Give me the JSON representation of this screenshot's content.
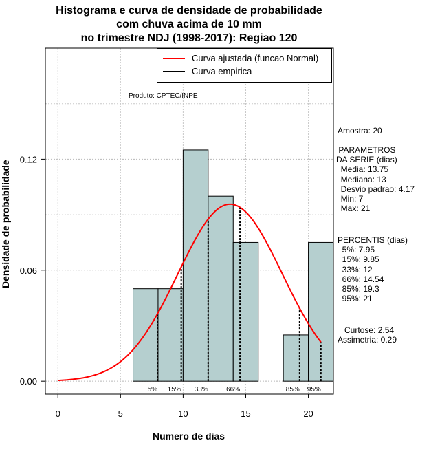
{
  "title_lines": [
    "Histograma e curva de densidade de probabilidade",
    "com chuva acima de 10 mm",
    "no trimestre NDJ (1998-2017): Regiao 120"
  ],
  "produto": "Produto: CPTEC/INPE",
  "sidebar": {
    "amostra": "Amostra: 20",
    "parametros": [
      " PARAMETROS",
      "DA SERIE (dias)",
      "  Media: 13.75",
      "  Mediana: 13",
      "  Desvio padrao: 4.17",
      "  Min: 7",
      "  Max: 21"
    ],
    "percentis": [
      "PERCENTIS (dias)",
      "  5%: 7.95",
      "  15%: 9.85",
      "  33%: 12",
      "  66%: 14.54",
      "  85%: 19.3",
      "  95%: 21"
    ],
    "shape": [
      "   Curtose: 2.54",
      "Assimetria: 0.29"
    ]
  },
  "chart_data": {
    "type": "bar",
    "title": "Histograma e curva de densidade de probabilidade com chuva acima de 10 mm no trimestre NDJ (1998-2017): Regiao 120",
    "xlabel": "Numero de dias",
    "ylabel": "Densidade de probabilidade",
    "xlim": [
      -1,
      22
    ],
    "ylim": [
      -0.007,
      0.18
    ],
    "xticks": [
      0,
      5,
      10,
      15,
      20
    ],
    "yticks": [
      0.0,
      0.06,
      0.12
    ],
    "ytick_labels": [
      "0.00",
      "0.06",
      "0.12"
    ],
    "bins": [
      {
        "x0": 6,
        "x1": 8,
        "density": 0.05
      },
      {
        "x0": 8,
        "x1": 10,
        "density": 0.05
      },
      {
        "x0": 10,
        "x1": 12,
        "density": 0.125
      },
      {
        "x0": 12,
        "x1": 14,
        "density": 0.1
      },
      {
        "x0": 14,
        "x1": 16,
        "density": 0.075
      },
      {
        "x0": 16,
        "x1": 18,
        "density": 0.0
      },
      {
        "x0": 18,
        "x1": 20,
        "density": 0.025
      },
      {
        "x0": 20,
        "x1": 22,
        "density": 0.075
      }
    ],
    "normal_curve": {
      "mean": 13.75,
      "sd": 4.17,
      "x_from": 0,
      "x_to": 21
    },
    "percentiles": [
      {
        "label": "5%",
        "x": 7.95
      },
      {
        "label": "15%",
        "x": 9.85
      },
      {
        "label": "33%",
        "x": 12
      },
      {
        "label": "66%",
        "x": 14.54
      },
      {
        "label": "85%",
        "x": 19.3
      },
      {
        "label": "95%",
        "x": 21
      }
    ],
    "legend": {
      "position": "top-right",
      "entries": [
        {
          "label": "Curva ajustada (funcao Normal)",
          "color": "#ff0000"
        },
        {
          "label": "Curva empirica",
          "color": "#000000"
        }
      ]
    },
    "grid": true,
    "bar_color": "#b5cfcf",
    "curve_color": "#ff0000"
  }
}
